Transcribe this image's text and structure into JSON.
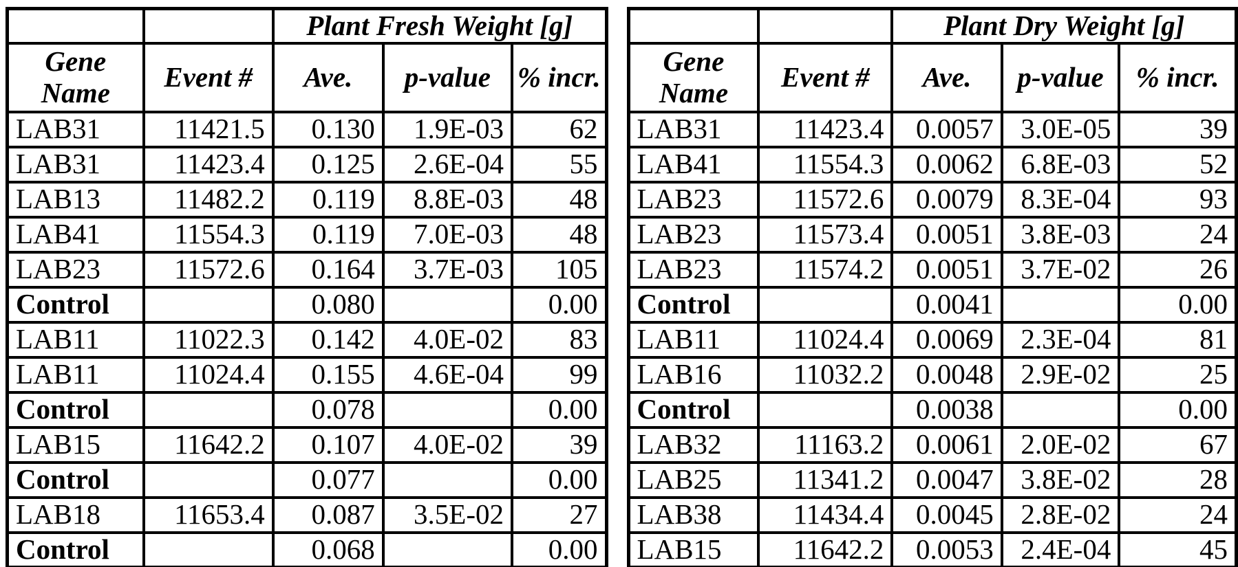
{
  "colors": {
    "background": "#ffffff",
    "border": "#000000",
    "text": "#000000"
  },
  "tables": [
    {
      "id": "plant-fresh-weight",
      "group_title": "Plant Fresh Weight [g]",
      "col_headers": [
        "Gene Name",
        "Event #",
        "Ave.",
        "p-value",
        "% incr."
      ],
      "rows": [
        {
          "control": false,
          "cells": [
            "LAB31",
            "11421.5",
            "0.130",
            "1.9E-03",
            "62"
          ]
        },
        {
          "control": false,
          "cells": [
            "LAB31",
            "11423.4",
            "0.125",
            "2.6E-04",
            "55"
          ]
        },
        {
          "control": false,
          "cells": [
            "LAB13",
            "11482.2",
            "0.119",
            "8.8E-03",
            "48"
          ]
        },
        {
          "control": false,
          "cells": [
            "LAB41",
            "11554.3",
            "0.119",
            "7.0E-03",
            "48"
          ]
        },
        {
          "control": false,
          "cells": [
            "LAB23",
            "11572.6",
            "0.164",
            "3.7E-03",
            "105"
          ]
        },
        {
          "control": true,
          "cells": [
            "Control",
            "",
            "0.080",
            "",
            "0.00"
          ]
        },
        {
          "control": false,
          "cells": [
            "LAB11",
            "11022.3",
            "0.142",
            "4.0E-02",
            "83"
          ]
        },
        {
          "control": false,
          "cells": [
            "LAB11",
            "11024.4",
            "0.155",
            "4.6E-04",
            "99"
          ]
        },
        {
          "control": true,
          "cells": [
            "Control",
            "",
            "0.078",
            "",
            "0.00"
          ]
        },
        {
          "control": false,
          "cells": [
            "LAB15",
            "11642.2",
            "0.107",
            "4.0E-02",
            "39"
          ]
        },
        {
          "control": true,
          "cells": [
            "Control",
            "",
            "0.077",
            "",
            "0.00"
          ]
        },
        {
          "control": false,
          "cells": [
            "LAB18",
            "11653.4",
            "0.087",
            "3.5E-02",
            "27"
          ]
        },
        {
          "control": true,
          "cells": [
            "Control",
            "",
            "0.068",
            "",
            "0.00"
          ]
        }
      ]
    },
    {
      "id": "plant-dry-weight",
      "group_title": "Plant Dry Weight [g]",
      "col_headers": [
        "Gene Name",
        "Event #",
        "Ave.",
        "p-value",
        "% incr."
      ],
      "rows": [
        {
          "control": false,
          "cells": [
            "LAB31",
            "11423.4",
            "0.0057",
            "3.0E-05",
            "39"
          ]
        },
        {
          "control": false,
          "cells": [
            "LAB41",
            "11554.3",
            "0.0062",
            "6.8E-03",
            "52"
          ]
        },
        {
          "control": false,
          "cells": [
            "LAB23",
            "11572.6",
            "0.0079",
            "8.3E-04",
            "93"
          ]
        },
        {
          "control": false,
          "cells": [
            "LAB23",
            "11573.4",
            "0.0051",
            "3.8E-03",
            "24"
          ]
        },
        {
          "control": false,
          "cells": [
            "LAB23",
            "11574.2",
            "0.0051",
            "3.7E-02",
            "26"
          ]
        },
        {
          "control": true,
          "cells": [
            "Control",
            "",
            "0.0041",
            "",
            "0.00"
          ]
        },
        {
          "control": false,
          "cells": [
            "LAB11",
            "11024.4",
            "0.0069",
            "2.3E-04",
            "81"
          ]
        },
        {
          "control": false,
          "cells": [
            "LAB16",
            "11032.2",
            "0.0048",
            "2.9E-02",
            "25"
          ]
        },
        {
          "control": true,
          "cells": [
            "Control",
            "",
            "0.0038",
            "",
            "0.00"
          ]
        },
        {
          "control": false,
          "cells": [
            "LAB32",
            "11163.2",
            "0.0061",
            "2.0E-02",
            "67"
          ]
        },
        {
          "control": false,
          "cells": [
            "LAB25",
            "11341.2",
            "0.0047",
            "3.8E-02",
            "28"
          ]
        },
        {
          "control": false,
          "cells": [
            "LAB38",
            "11434.4",
            "0.0045",
            "2.8E-02",
            "24"
          ]
        },
        {
          "control": false,
          "cells": [
            "LAB15",
            "11642.2",
            "0.0053",
            "2.4E-04",
            "45"
          ]
        }
      ]
    }
  ]
}
